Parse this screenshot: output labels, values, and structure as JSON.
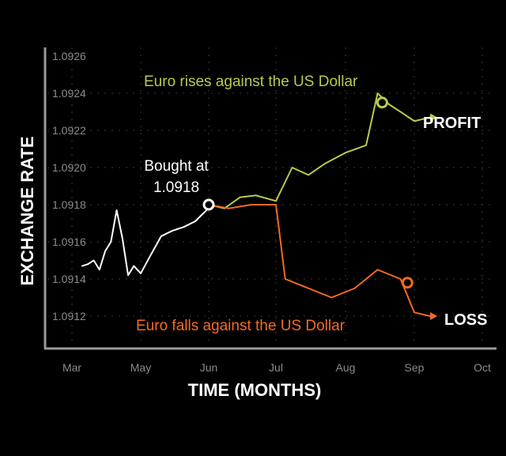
{
  "chart_data": {
    "type": "line",
    "xlabel": "TIME (MONTHS)",
    "ylabel": "EXCHANGE RATE",
    "x_ticks": [
      "Mar",
      "May",
      "Jun",
      "Jul",
      "Aug",
      "Sep",
      "Oct"
    ],
    "y_ticks": [
      "1.0926",
      "1.0924",
      "1.0922",
      "1.0920",
      "1.0918",
      "1.0916",
      "1.0914",
      "1.0912"
    ],
    "ylim": [
      1.0911,
      1.0926
    ],
    "grid": true,
    "series": [
      {
        "key": "history",
        "color": "#ffffff",
        "x": [
          "Mar 10",
          "Mar 15",
          "Mar 20",
          "Mar 25",
          "Mar 30",
          "Apr 5",
          "Apr 10",
          "Apr 15",
          "Apr 20",
          "Apr 25",
          "May 1",
          "May 5",
          "May 10",
          "May 15",
          "May 20",
          "May 25",
          "May 30",
          "Jun 1"
        ],
        "values": [
          1.09147,
          1.09148,
          1.0915,
          1.09145,
          1.09155,
          1.0916,
          1.09177,
          1.09162,
          1.09142,
          1.09147,
          1.09143,
          1.09152,
          1.09163,
          1.09166,
          1.09168,
          1.09171,
          1.09177,
          1.0918
        ]
      },
      {
        "key": "rise",
        "name": "Euro rises against the US Dollar",
        "color": "#b6cc4e",
        "x": [
          "Jun 1",
          "Jun 8",
          "Jun 15",
          "Jun 22",
          "Jul 1",
          "Jul 8",
          "Jul 15",
          "Jul 22",
          "Aug 1",
          "Aug 10",
          "Aug 15",
          "Aug 20",
          "Aug 25",
          "Sep 1",
          "Sep 8"
        ],
        "values": [
          1.0918,
          1.09178,
          1.09184,
          1.09185,
          1.09182,
          1.092,
          1.09196,
          1.09202,
          1.09208,
          1.09212,
          1.0924,
          1.09234,
          1.0923,
          1.09225,
          1.09227
        ]
      },
      {
        "key": "fall",
        "name": "Euro falls against the US Dollar",
        "color": "#f36b21",
        "x": [
          "Jun 1",
          "Jun 10",
          "Jun 20",
          "Jul 1",
          "Jul 5",
          "Jul 15",
          "Jul 25",
          "Aug 5",
          "Aug 15",
          "Aug 25",
          "Sep 1",
          "Sep 8"
        ],
        "values": [
          1.0918,
          1.09178,
          1.0918,
          1.0918,
          1.0914,
          1.09135,
          1.0913,
          1.09135,
          1.09145,
          1.0914,
          1.09122,
          1.0912
        ]
      }
    ],
    "annotations": {
      "bought": "Bought at\n1.0918",
      "rise": "Euro rises against the US Dollar",
      "fall": "Euro falls against the US Dollar",
      "profit": "PROFIT",
      "loss": "LOSS"
    }
  },
  "colors": {
    "background": "#000000",
    "rise": "#b6cc4e",
    "fall": "#f36b21",
    "history": "#ffffff"
  }
}
